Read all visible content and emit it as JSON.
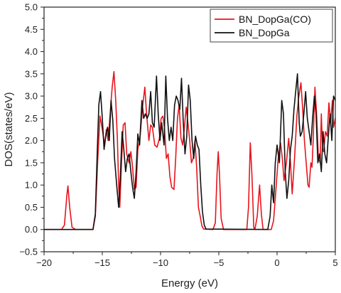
{
  "chart_data": {
    "type": "line",
    "title": "",
    "xlabel": "Energy (eV)",
    "ylabel": "DOS(states/eV)",
    "xlim": [
      -20,
      5
    ],
    "ylim": [
      -0.5,
      5.0
    ],
    "x_ticks": [
      "−20",
      "−15",
      "−10",
      "−5",
      "0",
      "5"
    ],
    "y_ticks": [
      "−0.5",
      "0.0",
      "0.5",
      "1.0",
      "1.5",
      "2.0",
      "2.5",
      "3.0",
      "3.5",
      "4.0",
      "4.5",
      "5.0"
    ],
    "grid": false,
    "legend_position": "top-right",
    "series": [
      {
        "name": "BN_DopGa(CO)",
        "color": "#e8141c",
        "points": [
          [
            -20,
            0
          ],
          [
            -18.5,
            0
          ],
          [
            -18.25,
            0.1
          ],
          [
            -18.05,
            0.75
          ],
          [
            -17.95,
            0.98
          ],
          [
            -17.8,
            0.5
          ],
          [
            -17.6,
            0.05
          ],
          [
            -17.3,
            0
          ],
          [
            -15.8,
            0
          ],
          [
            -15.6,
            0.3
          ],
          [
            -15.4,
            1.5
          ],
          [
            -15.2,
            2.55
          ],
          [
            -15.0,
            2.25
          ],
          [
            -14.8,
            1.9
          ],
          [
            -14.65,
            2.25
          ],
          [
            -14.5,
            2.0
          ],
          [
            -14.3,
            2.7
          ],
          [
            -14.15,
            3.2
          ],
          [
            -14.0,
            3.55
          ],
          [
            -13.85,
            2.9
          ],
          [
            -13.7,
            2.0
          ],
          [
            -13.6,
            1.0
          ],
          [
            -13.5,
            0.5
          ],
          [
            -13.35,
            1.5
          ],
          [
            -13.2,
            2.35
          ],
          [
            -13.05,
            2.4
          ],
          [
            -12.9,
            1.7
          ],
          [
            -12.7,
            1.5
          ],
          [
            -12.55,
            1.75
          ],
          [
            -12.4,
            1.4
          ],
          [
            -12.25,
            0.9
          ],
          [
            -12.1,
            0.95
          ],
          [
            -11.95,
            1.8
          ],
          [
            -11.75,
            2.1
          ],
          [
            -11.55,
            2.75
          ],
          [
            -11.35,
            3.2
          ],
          [
            -11.2,
            2.6
          ],
          [
            -11.0,
            2.0
          ],
          [
            -10.85,
            2.35
          ],
          [
            -10.7,
            2.3
          ],
          [
            -10.5,
            1.9
          ],
          [
            -10.3,
            1.85
          ],
          [
            -10.1,
            2.05
          ],
          [
            -9.95,
            2.5
          ],
          [
            -9.8,
            2.55
          ],
          [
            -9.65,
            2.25
          ],
          [
            -9.5,
            1.6
          ],
          [
            -9.35,
            1.7
          ],
          [
            -9.2,
            1.2
          ],
          [
            -9.05,
            0.95
          ],
          [
            -8.85,
            0.9
          ],
          [
            -8.7,
            1.6
          ],
          [
            -8.55,
            2.5
          ],
          [
            -8.4,
            2.8
          ],
          [
            -8.25,
            2.05
          ],
          [
            -8.1,
            1.9
          ],
          [
            -7.95,
            2.3
          ],
          [
            -7.8,
            2.75
          ],
          [
            -7.65,
            2.4
          ],
          [
            -7.5,
            2.0
          ],
          [
            -7.35,
            1.5
          ],
          [
            -7.2,
            1.6
          ],
          [
            -7.05,
            2.0
          ],
          [
            -6.9,
            1.4
          ],
          [
            -6.75,
            0.5
          ],
          [
            -6.6,
            0.3
          ],
          [
            -6.45,
            0.08
          ],
          [
            -6.3,
            0.01
          ],
          [
            -5.5,
            0
          ],
          [
            -5.3,
            0.15
          ],
          [
            -5.15,
            1.25
          ],
          [
            -5.05,
            1.75
          ],
          [
            -4.95,
            1.3
          ],
          [
            -4.8,
            0.25
          ],
          [
            -4.6,
            0
          ],
          [
            -2.6,
            0
          ],
          [
            -2.45,
            0.5
          ],
          [
            -2.3,
            1.95
          ],
          [
            -2.15,
            1.2
          ],
          [
            -2.0,
            0.05
          ],
          [
            -1.9,
            0
          ],
          [
            -1.7,
            0.3
          ],
          [
            -1.5,
            1.0
          ],
          [
            -1.35,
            0.35
          ],
          [
            -1.2,
            0
          ],
          [
            -0.5,
            0
          ],
          [
            -0.3,
            0.2
          ],
          [
            -0.1,
            0.9
          ],
          [
            0.1,
            1.6
          ],
          [
            0.3,
            1.95
          ],
          [
            0.45,
            1.6
          ],
          [
            0.6,
            1.1
          ],
          [
            0.8,
            1.5
          ],
          [
            1.0,
            2.05
          ],
          [
            1.15,
            1.5
          ],
          [
            1.3,
            0.8
          ],
          [
            1.5,
            1.6
          ],
          [
            1.7,
            2.55
          ],
          [
            1.85,
            2.95
          ],
          [
            2.05,
            3.3
          ],
          [
            2.2,
            2.7
          ],
          [
            2.35,
            2.0
          ],
          [
            2.5,
            1.5
          ],
          [
            2.65,
            1.0
          ],
          [
            2.75,
            0.95
          ],
          [
            2.9,
            1.5
          ],
          [
            3.0,
            1.4
          ],
          [
            3.1,
            2.0
          ],
          [
            3.25,
            3.2
          ],
          [
            3.4,
            2.55
          ],
          [
            3.55,
            1.6
          ],
          [
            3.7,
            1.5
          ],
          [
            3.8,
            2.6
          ],
          [
            3.9,
            1.8
          ],
          [
            4.0,
            1.75
          ],
          [
            4.15,
            2.2
          ],
          [
            4.3,
            2.1
          ],
          [
            4.45,
            2.85
          ],
          [
            4.6,
            2.4
          ],
          [
            4.75,
            2.9
          ],
          [
            4.85,
            2.3
          ],
          [
            5.0,
            2.5
          ]
        ]
      },
      {
        "name": "BN_DopGa",
        "color": "#111111",
        "points": [
          [
            -20,
            0
          ],
          [
            -15.8,
            0
          ],
          [
            -15.6,
            0.35
          ],
          [
            -15.45,
            1.6
          ],
          [
            -15.3,
            2.8
          ],
          [
            -15.15,
            3.1
          ],
          [
            -15.0,
            2.5
          ],
          [
            -14.85,
            1.8
          ],
          [
            -14.7,
            2.1
          ],
          [
            -14.55,
            2.3
          ],
          [
            -14.4,
            2.0
          ],
          [
            -14.25,
            2.9
          ],
          [
            -14.1,
            2.45
          ],
          [
            -13.95,
            1.6
          ],
          [
            -13.75,
            0.95
          ],
          [
            -13.6,
            0.5
          ],
          [
            -13.45,
            1.2
          ],
          [
            -13.3,
            2.2
          ],
          [
            -13.15,
            1.8
          ],
          [
            -13.0,
            1.3
          ],
          [
            -12.85,
            1.6
          ],
          [
            -12.7,
            1.7
          ],
          [
            -12.55,
            1.3
          ],
          [
            -12.4,
            0.95
          ],
          [
            -12.25,
            0.7
          ],
          [
            -12.1,
            1.3
          ],
          [
            -11.95,
            2.15
          ],
          [
            -11.8,
            1.9
          ],
          [
            -11.6,
            2.9
          ],
          [
            -11.45,
            2.5
          ],
          [
            -11.3,
            2.6
          ],
          [
            -11.15,
            2.5
          ],
          [
            -11.0,
            2.6
          ],
          [
            -10.85,
            3.1
          ],
          [
            -10.7,
            2.4
          ],
          [
            -10.55,
            2.3
          ],
          [
            -10.35,
            3.45
          ],
          [
            -10.2,
            2.6
          ],
          [
            -10.05,
            2.0
          ],
          [
            -9.9,
            2.4
          ],
          [
            -9.7,
            1.9
          ],
          [
            -9.55,
            3.45
          ],
          [
            -9.4,
            2.5
          ],
          [
            -9.25,
            2.0
          ],
          [
            -9.1,
            2.3
          ],
          [
            -8.95,
            2.0
          ],
          [
            -8.8,
            2.8
          ],
          [
            -8.65,
            3.0
          ],
          [
            -8.5,
            2.9
          ],
          [
            -8.35,
            2.7
          ],
          [
            -8.2,
            3.4
          ],
          [
            -8.05,
            2.4
          ],
          [
            -7.9,
            1.7
          ],
          [
            -7.75,
            2.1
          ],
          [
            -7.6,
            3.25
          ],
          [
            -7.45,
            2.9
          ],
          [
            -7.3,
            2.0
          ],
          [
            -7.15,
            1.6
          ],
          [
            -7.0,
            2.1
          ],
          [
            -6.85,
            1.9
          ],
          [
            -6.7,
            1.8
          ],
          [
            -6.55,
            1.0
          ],
          [
            -6.4,
            0.4
          ],
          [
            -6.25,
            0.1
          ],
          [
            -6.1,
            0.01
          ],
          [
            -0.8,
            0
          ],
          [
            -0.6,
            0.3
          ],
          [
            -0.45,
            1.0
          ],
          [
            -0.3,
            0.6
          ],
          [
            -0.15,
            1.5
          ],
          [
            0.0,
            1.9
          ],
          [
            0.2,
            1.5
          ],
          [
            0.4,
            2.9
          ],
          [
            0.55,
            2.6
          ],
          [
            0.7,
            1.3
          ],
          [
            0.85,
            0.7
          ],
          [
            1.0,
            1.1
          ],
          [
            1.15,
            1.8
          ],
          [
            1.3,
            2.1
          ],
          [
            1.45,
            2.7
          ],
          [
            1.6,
            3.1
          ],
          [
            1.75,
            3.5
          ],
          [
            1.9,
            2.4
          ],
          [
            2.0,
            2.1
          ],
          [
            2.15,
            2.2
          ],
          [
            2.3,
            2.6
          ],
          [
            2.45,
            3.1
          ],
          [
            2.6,
            2.5
          ],
          [
            2.75,
            2.2
          ],
          [
            2.9,
            1.9
          ],
          [
            3.05,
            2.5
          ],
          [
            3.2,
            3.0
          ],
          [
            3.35,
            2.6
          ],
          [
            3.5,
            1.5
          ],
          [
            3.65,
            1.7
          ],
          [
            3.8,
            1.3
          ],
          [
            3.95,
            2.2
          ],
          [
            4.1,
            1.7
          ],
          [
            4.25,
            1.5
          ],
          [
            4.4,
            2.1
          ],
          [
            4.55,
            2.6
          ],
          [
            4.7,
            2.0
          ],
          [
            4.85,
            3.0
          ],
          [
            5.0,
            2.9
          ]
        ]
      }
    ]
  }
}
